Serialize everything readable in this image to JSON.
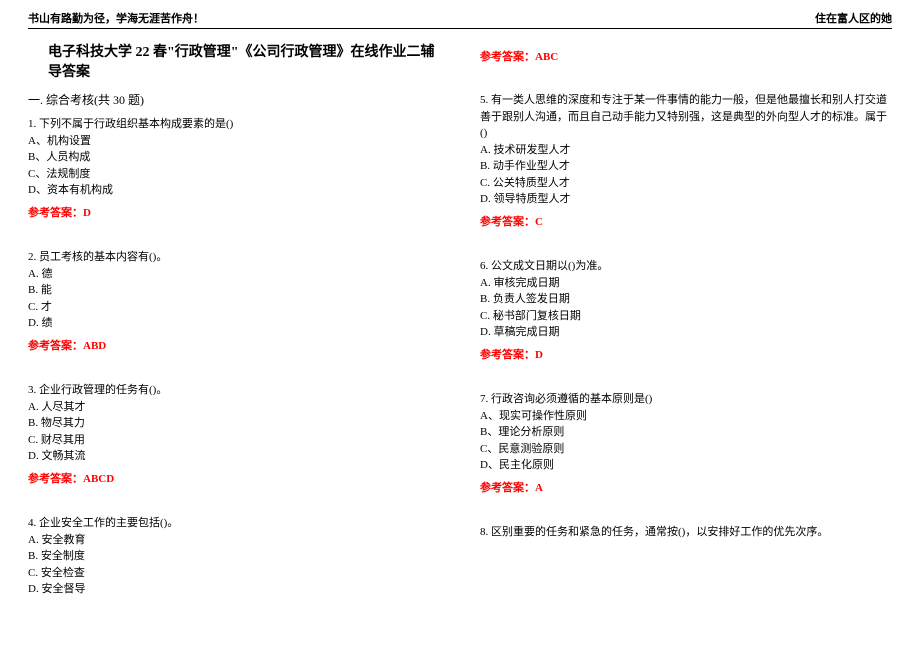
{
  "header": {
    "left": "书山有路勤为径，学海无涯苦作舟！",
    "right": "住在富人区的她"
  },
  "title": "电子科技大学 22 春\"行政管理\"《公司行政管理》在线作业二辅导答案",
  "section_heading": "一. 综合考核(共 30 题)",
  "colors": {
    "answer": "#ff0000",
    "text": "#000000",
    "background": "#ffffff"
  },
  "left_column": [
    {
      "q": "1. 下列不属于行政组织基本构成要素的是()",
      "opts": [
        "A、机构设置",
        "B、人员构成",
        "C、法规制度",
        "D、资本有机构成"
      ],
      "answer": "参考答案：D"
    },
    {
      "q": "2. 员工考核的基本内容有()。",
      "opts": [
        "A. 德",
        "B. 能",
        "C. 才",
        "D. 绩"
      ],
      "answer": "参考答案：ABD"
    },
    {
      "q": "3. 企业行政管理的任务有()。",
      "opts": [
        "A. 人尽其才",
        "B. 物尽其力",
        "C. 财尽其用",
        "D. 文畅其流"
      ],
      "answer": "参考答案：ABCD"
    },
    {
      "q": "4. 企业安全工作的主要包括()。",
      "opts": [
        "A. 安全教育",
        "B. 安全制度",
        "C. 安全检查",
        "D. 安全督导"
      ],
      "answer": null
    }
  ],
  "right_top_answer": "参考答案：ABC",
  "right_column": [
    {
      "q": "5. 有一类人思维的深度和专注于某一件事情的能力一般，但是他最擅长和别人打交道善于跟别人沟通，而且自己动手能力又特别强，这是典型的外向型人才的标准。属于()",
      "opts": [
        "A. 技术研发型人才",
        "B. 动手作业型人才",
        "C. 公关特质型人才",
        "D. 领导特质型人才"
      ],
      "answer": "参考答案：C"
    },
    {
      "q": "6. 公文成文日期以()为准。",
      "opts": [
        "A. 审核完成日期",
        "B. 负责人签发日期",
        "C. 秘书部门复核日期",
        "D. 草稿完成日期"
      ],
      "answer": "参考答案：D"
    },
    {
      "q": "7. 行政咨询必须遵循的基本原则是()",
      "opts": [
        "A、现实可操作性原则",
        "B、理论分析原则",
        "C、民意测验原则",
        "D、民主化原则"
      ],
      "answer": "参考答案：A"
    },
    {
      "q": "8. 区别重要的任务和紧急的任务，通常按()，以安排好工作的优先次序。",
      "opts": [],
      "answer": null
    }
  ]
}
